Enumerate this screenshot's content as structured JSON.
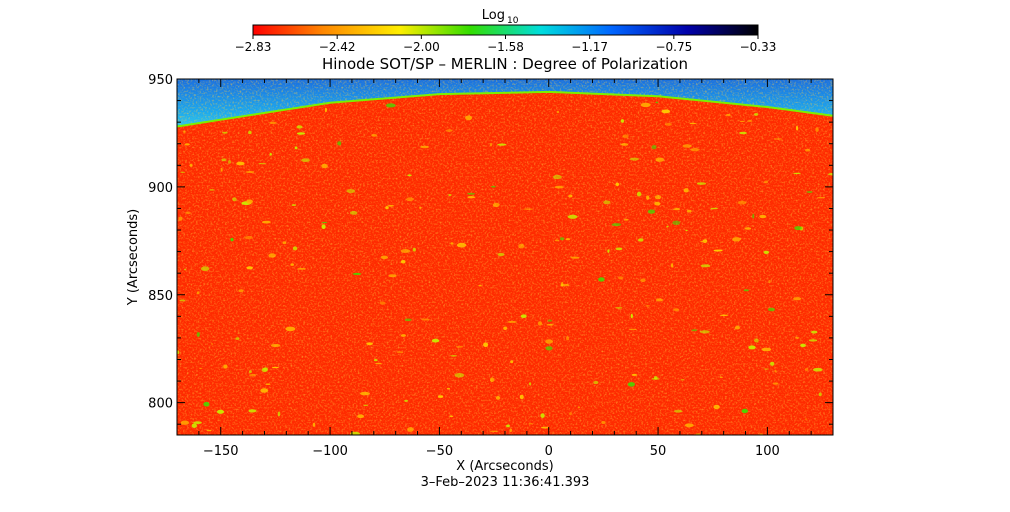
{
  "chart_data": {
    "type": "heatmap",
    "title": "Hinode SOT/SP – MERLIN : Degree of Polarization",
    "xlabel": "X (Arcseconds)",
    "ylabel": "Y (Arcseconds)",
    "footer": "3–Feb–2023 11:36:41.393",
    "xlim": [
      -170,
      130
    ],
    "ylim": [
      785,
      950
    ],
    "xticks": [
      -150,
      -100,
      -50,
      0,
      50,
      100
    ],
    "xtick_labels": [
      "−150",
      "−100",
      "−50",
      "0",
      "50",
      "100"
    ],
    "yticks": [
      800,
      850,
      900,
      950
    ],
    "ytick_labels": [
      "800",
      "850",
      "900",
      "950"
    ],
    "limb": {
      "x": [
        -170,
        -100,
        -50,
        0,
        50,
        100,
        130
      ],
      "y": [
        928,
        939,
        943,
        944,
        942,
        937,
        933
      ]
    },
    "colorbar": {
      "label_main": "Log",
      "label_sub": "10",
      "range": [
        -2.83,
        -0.33
      ],
      "tick_labels": [
        "−2.83",
        "−2.42",
        "−2.00",
        "−1.58",
        "−1.17",
        "−0.75",
        "−0.33"
      ],
      "colormap": [
        "#ff0000",
        "#ff8800",
        "#ffee00",
        "#33dd00",
        "#00dddd",
        "#0066ff",
        "#0000aa",
        "#000000"
      ]
    }
  }
}
